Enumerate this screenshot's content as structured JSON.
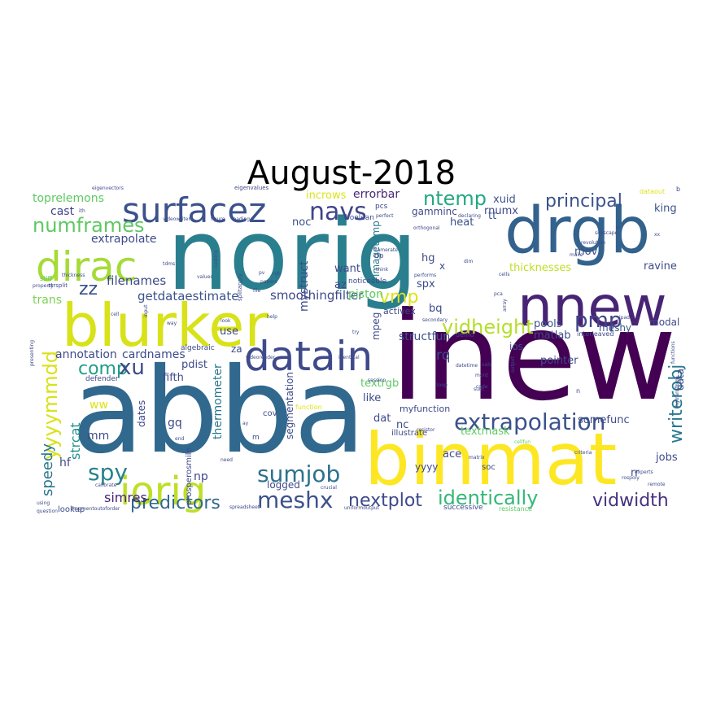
{
  "title": "August-2018",
  "words": [
    {
      "text": "norig",
      "color": "#2a7f8e"
    },
    {
      "text": "inew",
      "color": "#440154"
    },
    {
      "text": "abba",
      "color": "#31688e"
    },
    {
      "text": "drgb",
      "color": "#33628d"
    },
    {
      "text": "blurker",
      "color": "#d8e219"
    },
    {
      "text": "binmat",
      "color": "#fde725"
    },
    {
      "text": "nnew",
      "color": "#482475"
    },
    {
      "text": "surfacez",
      "color": "#3b528b"
    },
    {
      "text": "dirac",
      "color": "#a5db36"
    },
    {
      "text": "datain",
      "color": "#3e4a89"
    },
    {
      "text": "iorig",
      "color": "#bddf26"
    },
    {
      "text": "extrapolation",
      "color": "#3b528b"
    },
    {
      "text": "sumjob",
      "color": "#2c728e"
    },
    {
      "text": "meshx",
      "color": "#3b528b"
    },
    {
      "text": "identically",
      "color": "#35b779"
    },
    {
      "text": "vidheight",
      "color": "#b5de2b"
    },
    {
      "text": "navs",
      "color": "#414487"
    },
    {
      "text": "numframes",
      "color": "#5ec962"
    },
    {
      "text": "nextplot",
      "color": "#3e4a89"
    },
    {
      "text": "predictors",
      "color": "#31688e"
    },
    {
      "text": "principal",
      "color": "#3b528b"
    },
    {
      "text": "vidwidth",
      "color": "#46327e"
    },
    {
      "text": "writerobj",
      "color": "#2a788e"
    },
    {
      "text": "yyyymmdd",
      "color": "#d8e219"
    },
    {
      "text": "ntemp",
      "color": "#22a884"
    },
    {
      "text": "spy",
      "color": "#26828e"
    },
    {
      "text": "comp",
      "color": "#1f9e89"
    },
    {
      "text": "xu",
      "color": "#3e4a89"
    },
    {
      "text": "zz",
      "color": "#3b528b"
    },
    {
      "text": "pmp",
      "color": "#414487"
    },
    {
      "text": "vmp",
      "color": "#dde318"
    },
    {
      "text": "speedy",
      "color": "#2a788e"
    },
    {
      "text": "simres",
      "color": "#481f70"
    },
    {
      "text": "strcat",
      "color": "#21918c"
    },
    {
      "text": "smoothingfilter",
      "color": "#3e4a89"
    },
    {
      "text": "getdataestimate",
      "color": "#3b528b"
    },
    {
      "text": "extrapolate",
      "color": "#3e4a89"
    },
    {
      "text": "toprelemons",
      "color": "#5ec962"
    },
    {
      "text": "cast",
      "color": "#414487"
    },
    {
      "text": "filenames",
      "color": "#3e4a89"
    },
    {
      "text": "annotation",
      "color": "#3e4a89"
    },
    {
      "text": "cardnames",
      "color": "#3e4a89"
    },
    {
      "text": "trans",
      "color": "#7ad151"
    },
    {
      "text": "mystruct",
      "color": "#3e4a89"
    },
    {
      "text": "segmentation",
      "color": "#3e4a89"
    },
    {
      "text": "thermometer",
      "color": "#2a788e"
    },
    {
      "text": "incrows",
      "color": "#dde318"
    },
    {
      "text": "errorbar",
      "color": "#482878"
    },
    {
      "text": "noc",
      "color": "#3b528b"
    },
    {
      "text": "gamminc",
      "color": "#3e4a89"
    },
    {
      "text": "xuid",
      "color": "#3b528b"
    },
    {
      "text": "rnumx",
      "color": "#3e4a89"
    },
    {
      "text": "king",
      "color": "#3b528b"
    },
    {
      "text": "heat",
      "color": "#3b528b"
    },
    {
      "text": "tt",
      "color": "#3b528b"
    },
    {
      "text": "want",
      "color": "#3e4a89"
    },
    {
      "text": "imagetemp",
      "color": "#2a788e"
    },
    {
      "text": "piston",
      "color": "#5ec962"
    },
    {
      "text": "az",
      "color": "#3e4a89"
    },
    {
      "text": "hg",
      "color": "#3e4a89"
    },
    {
      "text": "spx",
      "color": "#3e4a89"
    },
    {
      "text": "mov",
      "color": "#3b528b"
    },
    {
      "text": "thicknesses",
      "color": "#bddf26"
    },
    {
      "text": "ravine",
      "color": "#3e4a89"
    },
    {
      "text": "pools",
      "color": "#3b528b"
    },
    {
      "text": "matlab",
      "color": "#3e4a89"
    },
    {
      "text": "meshy",
      "color": "#3b528b"
    },
    {
      "text": "modal",
      "color": "#3e4a89"
    },
    {
      "text": "data",
      "color": "#3e4a89"
    },
    {
      "text": "rq",
      "color": "#3e4a89"
    },
    {
      "text": "ios",
      "color": "#3e4a89"
    },
    {
      "text": "structfun",
      "color": "#3b528b"
    },
    {
      "text": "mpeg",
      "color": "#3e4a89"
    },
    {
      "text": "bq",
      "color": "#3e4a89"
    },
    {
      "text": "activex",
      "color": "#3e4a89"
    },
    {
      "text": "pointer",
      "color": "#3e4a89"
    },
    {
      "text": "textrgb",
      "color": "#5ec962"
    },
    {
      "text": "like",
      "color": "#3e4a89"
    },
    {
      "text": "dat",
      "color": "#3e4a89"
    },
    {
      "text": "nc",
      "color": "#3e4a89"
    },
    {
      "text": "textmask",
      "color": "#5ec962"
    },
    {
      "text": "somefunc",
      "color": "#3e4a89"
    },
    {
      "text": "myfunction",
      "color": "#3e4a89"
    },
    {
      "text": "illustrate",
      "color": "#3e4a89"
    },
    {
      "text": "ace",
      "color": "#3e4a89"
    },
    {
      "text": "yyyy",
      "color": "#3e4a89"
    },
    {
      "text": "soc",
      "color": "#3e4a89"
    },
    {
      "text": "rr",
      "color": "#3e4a89"
    },
    {
      "text": "jobs",
      "color": "#3e4a89"
    },
    {
      "text": "logged",
      "color": "#3e4a89"
    },
    {
      "text": "pdist",
      "color": "#3e4a89"
    },
    {
      "text": "za",
      "color": "#3e4a89"
    },
    {
      "text": "fifth",
      "color": "#3e4a89"
    },
    {
      "text": "use",
      "color": "#3e4a89"
    },
    {
      "text": "dates",
      "color": "#3e4a89"
    },
    {
      "text": "gq",
      "color": "#3e4a89"
    },
    {
      "text": "ww",
      "color": "#dde318"
    },
    {
      "text": "mm",
      "color": "#3e4a89"
    },
    {
      "text": "hf",
      "color": "#3e4a89"
    },
    {
      "text": "np",
      "color": "#3e4a89"
    },
    {
      "text": "lookup",
      "color": "#3e4a89"
    },
    {
      "text": "cov",
      "color": "#3e4a89"
    },
    {
      "text": "successive",
      "color": "#3e4a89"
    },
    {
      "text": "resistance",
      "color": "#5ec962"
    },
    {
      "text": "algebraic",
      "color": "#3e4a89"
    },
    {
      "text": "defender",
      "color": "#3e4a89"
    },
    {
      "text": "prosperosmile",
      "color": "#3e4a89"
    },
    {
      "text": "eigenvectors",
      "color": "#3e4a89"
    },
    {
      "text": "eigenvalues",
      "color": "#3e4a89"
    },
    {
      "text": "dataout",
      "color": "#dde318"
    },
    {
      "text": "uniformoutput",
      "color": "#3e4a89"
    },
    {
      "text": "fragmentoutoforder",
      "color": "#3e4a89"
    },
    {
      "text": "spreadsheet",
      "color": "#3e4a89"
    },
    {
      "text": "crucial",
      "color": "#3e4a89"
    },
    {
      "text": "criteria",
      "color": "#3e4a89"
    },
    {
      "text": "experts",
      "color": "#3e4a89"
    },
    {
      "text": "remote",
      "color": "#3e4a89"
    },
    {
      "text": "cellfun",
      "color": "#5ec962"
    },
    {
      "text": "noticeable",
      "color": "#3e4a89"
    },
    {
      "text": "framerate",
      "color": "#3e4a89"
    },
    {
      "text": "orthogonal",
      "color": "#3e4a89"
    },
    {
      "text": "declaring",
      "color": "#3e4a89"
    },
    {
      "text": "simscape",
      "color": "#3e4a89"
    },
    {
      "text": "revolution",
      "color": "#3e4a89"
    },
    {
      "text": "splitapply",
      "color": "#3e4a89"
    },
    {
      "text": "videowriter",
      "color": "#3e4a89"
    },
    {
      "text": "figure",
      "color": "#3e4a89"
    },
    {
      "text": "strsplit",
      "color": "#3e4a89"
    },
    {
      "text": "thickness",
      "color": "#3e4a89"
    },
    {
      "text": "property",
      "color": "#3e4a89"
    },
    {
      "text": "stiff",
      "color": "#5ec962"
    },
    {
      "text": "calibrate",
      "color": "#3e4a89"
    },
    {
      "text": "question",
      "color": "#3e4a89"
    },
    {
      "text": "using",
      "color": "#3e4a89"
    },
    {
      "text": "presenting",
      "color": "#3e4a89"
    },
    {
      "text": "performs",
      "color": "#3e4a89"
    },
    {
      "text": "think",
      "color": "#3e4a89"
    },
    {
      "text": "pcs",
      "color": "#3e4a89"
    },
    {
      "text": "dp",
      "color": "#3e4a89"
    },
    {
      "text": "perfect",
      "color": "#3e4a89"
    },
    {
      "text": "boolean",
      "color": "#3e4a89"
    },
    {
      "text": "secondary",
      "color": "#3e4a89"
    },
    {
      "text": "datetime",
      "color": "#3e4a89"
    },
    {
      "text": "identical",
      "color": "#3e4a89"
    },
    {
      "text": "session",
      "color": "#3e4a89"
    },
    {
      "text": "function",
      "color": "#dde318"
    },
    {
      "text": "videoreader",
      "color": "#3e4a89"
    },
    {
      "text": "matrix",
      "color": "#3e4a89"
    },
    {
      "text": "hgtransform",
      "color": "#3e4a89"
    },
    {
      "text": "functions",
      "color": "#3e4a89"
    },
    {
      "text": "rospoly",
      "color": "#3e4a89"
    },
    {
      "text": "interleaved",
      "color": "#3e4a89"
    },
    {
      "text": "demo",
      "color": "#3e4a89"
    },
    {
      "text": "loop",
      "color": "#3e4a89"
    },
    {
      "text": "resistor",
      "color": "#3e4a89"
    },
    {
      "text": "cells",
      "color": "#3e4a89"
    },
    {
      "text": "pca",
      "color": "#3e4a89"
    },
    {
      "text": "array",
      "color": "#3e4a89"
    },
    {
      "text": "output",
      "color": "#3e4a89"
    },
    {
      "text": "values",
      "color": "#3e4a89"
    },
    {
      "text": "look",
      "color": "#3e4a89"
    },
    {
      "text": "help",
      "color": "#3e4a89"
    },
    {
      "text": "need",
      "color": "#3e4a89"
    },
    {
      "text": "end",
      "color": "#3e4a89"
    },
    {
      "text": "file",
      "color": "#3e4a89"
    },
    {
      "text": "input",
      "color": "#3e4a89"
    },
    {
      "text": "cell",
      "color": "#3e4a89"
    },
    {
      "text": "way",
      "color": "#3e4a89"
    },
    {
      "text": "try",
      "color": "#3e4a89"
    },
    {
      "text": "papers",
      "color": "#3e4a89"
    },
    {
      "text": "rgb",
      "color": "#3e4a89"
    },
    {
      "text": "pv",
      "color": "#3e4a89"
    },
    {
      "text": "tdms",
      "color": "#3e4a89"
    },
    {
      "text": "casting",
      "color": "#3e4a89"
    },
    {
      "text": "ith",
      "color": "#3e4a89"
    },
    {
      "text": "loading",
      "color": "#3e4a89"
    },
    {
      "text": "make",
      "color": "#3e4a89"
    },
    {
      "text": "mord",
      "color": "#3e4a89"
    },
    {
      "text": "code",
      "color": "#3e4a89"
    },
    {
      "text": "vals",
      "color": "#3e4a89"
    },
    {
      "text": "dim",
      "color": "#3e4a89"
    },
    {
      "text": "sum",
      "color": "#3e4a89"
    },
    {
      "text": "ay",
      "color": "#3e4a89"
    },
    {
      "text": "xx",
      "color": "#3e4a89"
    },
    {
      "text": "ipad",
      "color": "#3e4a89"
    },
    {
      "text": "x",
      "color": "#3e4a89"
    },
    {
      "text": "n",
      "color": "#3e4a89"
    },
    {
      "text": "m",
      "color": "#3e4a89"
    },
    {
      "text": "b",
      "color": "#3e4a89"
    },
    {
      "text": "e",
      "color": "#3e4a89"
    }
  ]
}
